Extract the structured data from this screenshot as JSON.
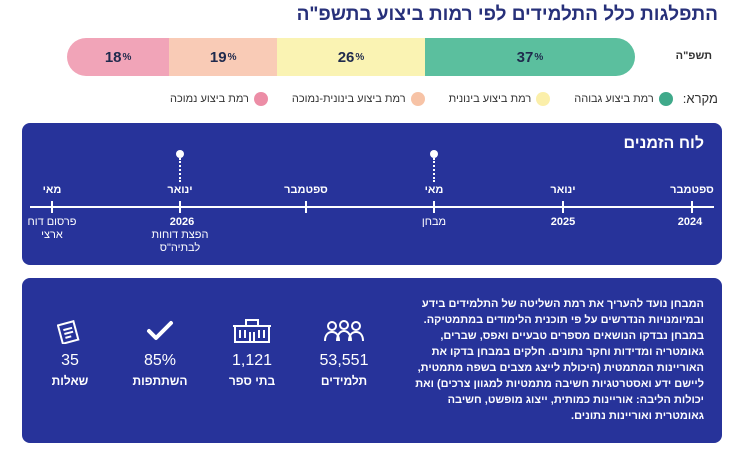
{
  "title": "התפלגות כלל התלמידים לפי רמות ביצוע בתשפ\"ה",
  "bar": {
    "row_label": "תשפ\"ה",
    "segments": [
      {
        "value": "37",
        "unit": "%",
        "share": 37,
        "color": "#5bbf9e"
      },
      {
        "value": "26",
        "unit": "%",
        "share": 26,
        "color": "#faf3b3"
      },
      {
        "value": "19",
        "unit": "%",
        "share": 19,
        "color": "#f9cbb6"
      },
      {
        "value": "18",
        "unit": "%",
        "share": 18,
        "color": "#f1a4b8"
      }
    ]
  },
  "legend": {
    "title": "מקרא:",
    "items": [
      {
        "label": "רמת ביצוע גבוהה",
        "color": "#3fa98a"
      },
      {
        "label": "רמת ביצוע בינונית",
        "color": "#fbefaa"
      },
      {
        "label": "רמת ביצוע בינונית-נמוכה",
        "color": "#f7c3a6"
      },
      {
        "label": "רמת ביצוע נמוכה",
        "color": "#ec8da6"
      }
    ]
  },
  "timeline": {
    "title": "לוח הזמנים",
    "months": [
      "ספטמבר",
      "ינואר",
      "מאי",
      "ספטמבר",
      "ינואר",
      "מאי"
    ],
    "years": [
      "2024",
      "2025",
      "2026"
    ],
    "events": [
      {
        "label": "מבחן"
      },
      {
        "label": "הפצת דוחות לבתיה\"ס"
      },
      {
        "label": "פרסום דוח ארצי"
      }
    ]
  },
  "stats": {
    "description": "המבחן נועד להעריך את רמת השליטה של התלמידים בידע ובמיומנויות הנדרשים על פי תוכנית הלימודים במתמטיקה. במבחן נבדקו הנושאים מספרים טבעיים ואפס, שברים, גאומטריה ומדידות וחקר נתונים. חלקים במבחן בדקו את האוריינות המתמטית (היכולת לייצג מצבים בשפה מתמטית, ליישם ידע ואסטרטגיות חשיבה מתמטיות למגוון צרכים) ואת יכולות הליבה: אוריינות כמותית, ייצוג מופשט, חשיבה גאומטרית ואוריינות נתונים.",
    "items": [
      {
        "value": "53,551",
        "label": "תלמידים",
        "icon": "students-icon"
      },
      {
        "value": "1,121",
        "label": "בתי ספר",
        "icon": "school-icon"
      },
      {
        "value": "85%",
        "label": "השתתפות",
        "icon": "checkmark-icon"
      },
      {
        "value": "35",
        "label": "שאלות",
        "icon": "questions-icon"
      }
    ]
  }
}
